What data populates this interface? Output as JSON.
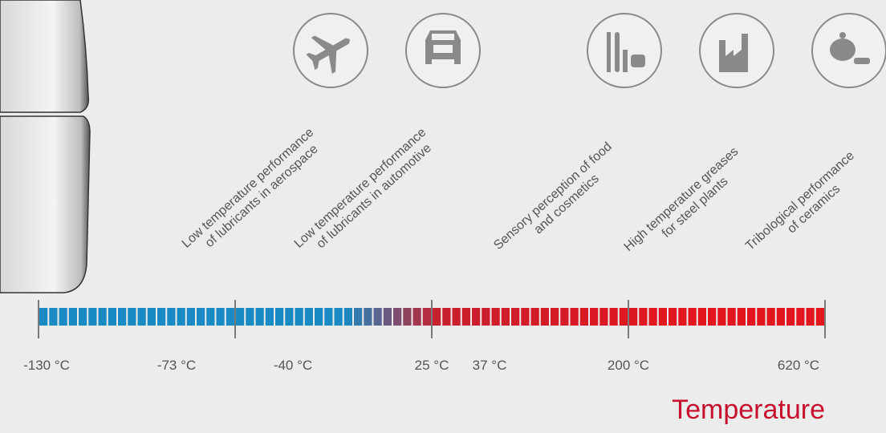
{
  "applications": [
    {
      "line1": "Low temperature performance",
      "line2": "of lubricants in aerospace"
    },
    {
      "line1": "Low temperature performance",
      "line2": "of lubricants in automotive"
    },
    {
      "line1": "Sensory perception of food",
      "line2": "and cosmetics"
    },
    {
      "line1": "High temperature greases",
      "line2": "for steel plants"
    },
    {
      "line1": "Tribological performance",
      "line2": "of ceramics"
    }
  ],
  "scale_labels": [
    "-130 °C",
    "-73 °C",
    "-40 °C",
    "25 °C",
    "37 °C",
    "200 °C",
    "620 °C"
  ],
  "axis_title": "Temperature"
}
